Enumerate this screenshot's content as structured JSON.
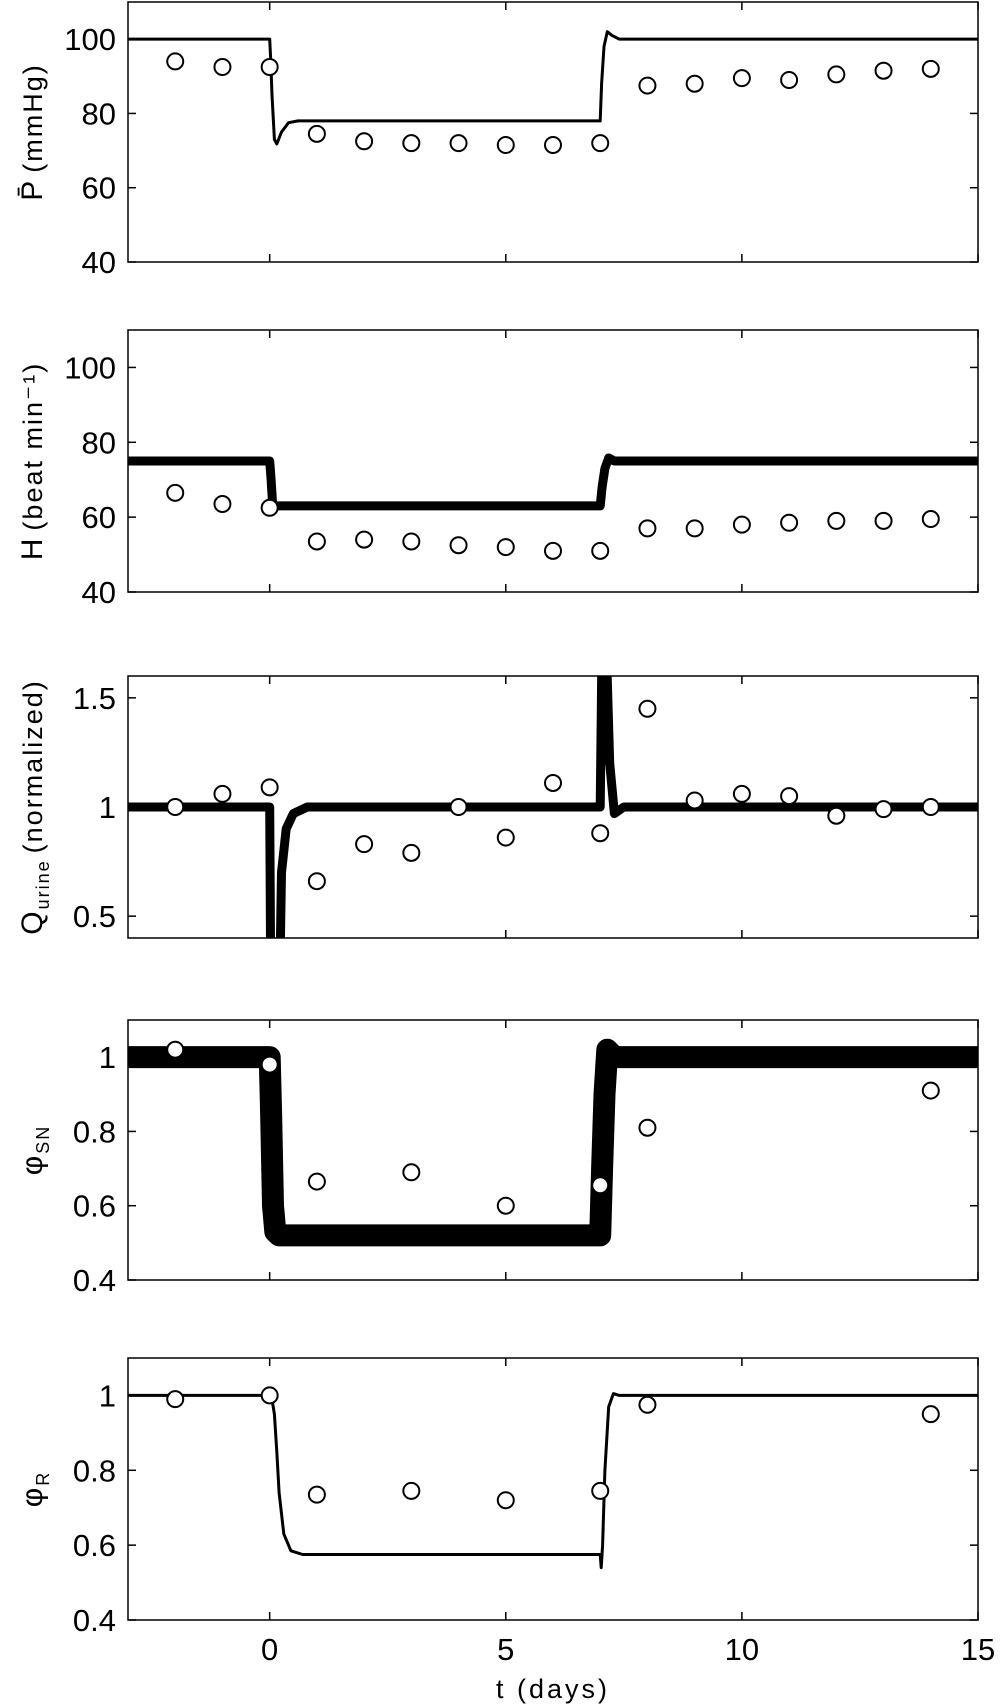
{
  "chart_data": [
    {
      "type": "line",
      "ylabel": {
        "main": "P̄",
        "sub": "",
        "tail": "(mmHg)"
      },
      "xlim": [
        -3,
        15
      ],
      "ylim": [
        40,
        110
      ],
      "yticks": [
        40,
        60,
        80,
        100
      ],
      "xticks": [
        0,
        5,
        10,
        15
      ],
      "grid": false,
      "model": [
        [
          -3,
          100
        ],
        [
          0,
          100
        ],
        [
          0.02,
          95
        ],
        [
          0.05,
          85
        ],
        [
          0.1,
          73
        ],
        [
          0.15,
          71.8
        ],
        [
          0.25,
          75
        ],
        [
          0.4,
          77.5
        ],
        [
          0.6,
          78
        ],
        [
          7,
          78
        ],
        [
          7.03,
          88
        ],
        [
          7.08,
          98
        ],
        [
          7.15,
          102
        ],
        [
          7.25,
          101
        ],
        [
          7.4,
          100
        ],
        [
          15,
          100
        ]
      ],
      "data": [
        [
          -2,
          94
        ],
        [
          -1,
          92.5
        ],
        [
          0,
          92.5
        ],
        [
          1,
          74.5
        ],
        [
          2,
          72.5
        ],
        [
          3,
          72
        ],
        [
          4,
          72
        ],
        [
          5,
          71.5
        ],
        [
          6,
          71.5
        ],
        [
          7,
          72
        ],
        [
          8,
          87.5
        ],
        [
          9,
          88
        ],
        [
          10,
          89.5
        ],
        [
          11,
          89
        ],
        [
          12,
          90.5
        ],
        [
          13,
          91.5
        ],
        [
          14,
          92
        ]
      ]
    },
    {
      "type": "line",
      "ylabel": {
        "main": "H",
        "sub": "",
        "tail": "(beat min⁻¹)"
      },
      "xlim": [
        -3,
        15
      ],
      "ylim": [
        40,
        110
      ],
      "yticks": [
        40,
        60,
        80,
        100
      ],
      "xticks": [
        0,
        5,
        10,
        15
      ],
      "grid": false,
      "model": [
        [
          -3,
          75
        ],
        [
          0,
          75
        ],
        [
          0.03,
          70
        ],
        [
          0.06,
          64
        ],
        [
          0.1,
          63
        ],
        [
          7,
          63
        ],
        [
          7.04,
          68
        ],
        [
          7.1,
          73
        ],
        [
          7.18,
          75.8
        ],
        [
          7.3,
          75
        ],
        [
          15,
          75
        ]
      ],
      "data": [
        [
          -2,
          66.5
        ],
        [
          -1,
          63.5
        ],
        [
          0,
          62.5
        ],
        [
          1,
          53.5
        ],
        [
          2,
          54
        ],
        [
          3,
          53.5
        ],
        [
          4,
          52.5
        ],
        [
          5,
          52
        ],
        [
          6,
          51
        ],
        [
          7,
          51
        ],
        [
          8,
          57
        ],
        [
          9,
          57
        ],
        [
          10,
          58
        ],
        [
          11,
          58.5
        ],
        [
          12,
          59
        ],
        [
          13,
          59
        ],
        [
          14,
          59.5
        ]
      ]
    },
    {
      "type": "line",
      "ylabel": {
        "main": "Q",
        "sub": "urine",
        "tail": "(normalized)"
      },
      "xlim": [
        -3,
        15
      ],
      "ylim": [
        0.4,
        1.6
      ],
      "yticks": [
        0.5,
        1,
        1.5
      ],
      "ytick_labels": [
        "0.5",
        "1",
        "1.5"
      ],
      "xticks": [
        0,
        5,
        10,
        15
      ],
      "grid": false,
      "model": [
        [
          -3,
          1
        ],
        [
          0,
          1
        ],
        [
          0.01,
          0.7
        ],
        [
          0.02,
          0.3
        ],
        [
          0.22,
          0.3
        ],
        [
          0.25,
          0.7
        ],
        [
          0.35,
          0.9
        ],
        [
          0.5,
          0.97
        ],
        [
          0.8,
          1
        ],
        [
          7,
          1
        ],
        [
          7.02,
          1.4
        ],
        [
          7.04,
          1.8
        ],
        [
          7.12,
          1.8
        ],
        [
          7.2,
          1.2
        ],
        [
          7.3,
          0.97
        ],
        [
          7.5,
          1
        ],
        [
          15,
          1
        ]
      ],
      "data": [
        [
          -2,
          1
        ],
        [
          -1,
          1.06
        ],
        [
          0,
          1.09
        ],
        [
          1,
          0.66
        ],
        [
          2,
          0.83
        ],
        [
          3,
          0.79
        ],
        [
          4,
          1.0
        ],
        [
          5,
          0.86
        ],
        [
          6,
          1.11
        ],
        [
          7,
          0.88
        ],
        [
          8,
          1.45
        ],
        [
          9,
          1.03
        ],
        [
          10,
          1.06
        ],
        [
          11,
          1.05
        ],
        [
          12,
          0.96
        ],
        [
          13,
          0.99
        ],
        [
          14,
          1.0
        ]
      ]
    },
    {
      "type": "line",
      "ylabel": {
        "main": "φ",
        "sub": "SN",
        "tail": ""
      },
      "xlim": [
        -3,
        15
      ],
      "ylim": [
        0.4,
        1.1
      ],
      "yticks": [
        0.4,
        0.6,
        0.8,
        1
      ],
      "ytick_labels": [
        "0.4",
        "0.6",
        "0.8",
        "1"
      ],
      "xticks": [
        0,
        5,
        10,
        15
      ],
      "grid": false,
      "model": [
        [
          -3,
          1
        ],
        [
          0,
          1
        ],
        [
          0.03,
          0.85
        ],
        [
          0.07,
          0.6
        ],
        [
          0.12,
          0.53
        ],
        [
          0.2,
          0.52
        ],
        [
          7,
          0.52
        ],
        [
          7.04,
          0.7
        ],
        [
          7.09,
          0.9
        ],
        [
          7.15,
          1.02
        ],
        [
          7.3,
          1.0
        ],
        [
          15,
          1
        ]
      ],
      "data": [
        [
          -2,
          1.02
        ],
        [
          0,
          0.98
        ],
        [
          1,
          0.665
        ],
        [
          3,
          0.69
        ],
        [
          5,
          0.6
        ],
        [
          7,
          0.655
        ],
        [
          8,
          0.81
        ],
        [
          14,
          0.91
        ]
      ]
    },
    {
      "type": "line",
      "ylabel": {
        "main": "φ",
        "sub": "R",
        "tail": ""
      },
      "xlim": [
        -3,
        15
      ],
      "ylim": [
        0.4,
        1.1
      ],
      "yticks": [
        0.4,
        0.6,
        0.8,
        1
      ],
      "ytick_labels": [
        "0.4",
        "0.6",
        "0.8",
        "1"
      ],
      "xticks": [
        0,
        5,
        10,
        15
      ],
      "xtick_labels": [
        "0",
        "5",
        "10",
        "15"
      ],
      "xlabel": "t (days)",
      "grid": false,
      "model": [
        [
          -3,
          1
        ],
        [
          0,
          1
        ],
        [
          0.05,
          0.99
        ],
        [
          0.1,
          0.95
        ],
        [
          0.15,
          0.85
        ],
        [
          0.2,
          0.74
        ],
        [
          0.3,
          0.63
        ],
        [
          0.45,
          0.585
        ],
        [
          0.7,
          0.575
        ],
        [
          7,
          0.575
        ],
        [
          7.02,
          0.54
        ],
        [
          7.05,
          0.6
        ],
        [
          7.1,
          0.8
        ],
        [
          7.18,
          0.97
        ],
        [
          7.28,
          1.005
        ],
        [
          7.4,
          1
        ],
        [
          15,
          1
        ]
      ],
      "data": [
        [
          -2,
          0.99
        ],
        [
          0,
          1.0
        ],
        [
          1,
          0.735
        ],
        [
          3,
          0.745
        ],
        [
          5,
          0.72
        ],
        [
          7,
          0.745
        ],
        [
          8,
          0.975
        ],
        [
          14,
          0.95
        ]
      ]
    }
  ]
}
